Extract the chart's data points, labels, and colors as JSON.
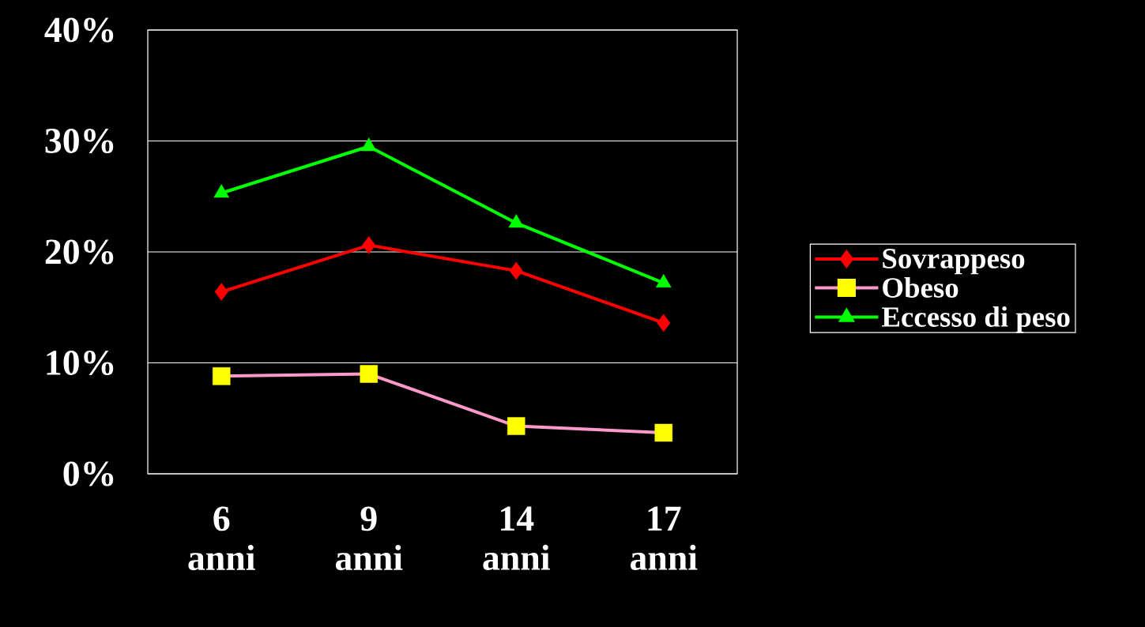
{
  "chart_data": {
    "type": "line",
    "categories": [
      "6 anni",
      "9 anni",
      "14 anni",
      "17 anni"
    ],
    "series": [
      {
        "name": "Sovrappeso",
        "color": "#ff0000",
        "marker": "diamond",
        "values": [
          16.4,
          20.6,
          18.3,
          13.6
        ]
      },
      {
        "name": "Obeso",
        "color": "#ff99cc",
        "colors": [
          "#ffff00",
          "#ffff00",
          "#ffff00",
          "#ffff00"
        ],
        "marker": "square",
        "values": [
          8.8,
          9.0,
          4.3,
          3.7
        ]
      },
      {
        "name": "Eccesso di peso",
        "color": "#00ff00",
        "marker": "triangle",
        "values": [
          25.3,
          29.5,
          22.6,
          17.2
        ]
      }
    ],
    "ylim": [
      0,
      40
    ],
    "yticks": [
      {
        "value": 0,
        "label": "0%"
      },
      {
        "value": 10,
        "label": "10%"
      },
      {
        "value": 20,
        "label": "20%"
      },
      {
        "value": 30,
        "label": "30%"
      },
      {
        "value": 40,
        "label": "40%"
      }
    ],
    "grid": "y",
    "legend": "right"
  }
}
